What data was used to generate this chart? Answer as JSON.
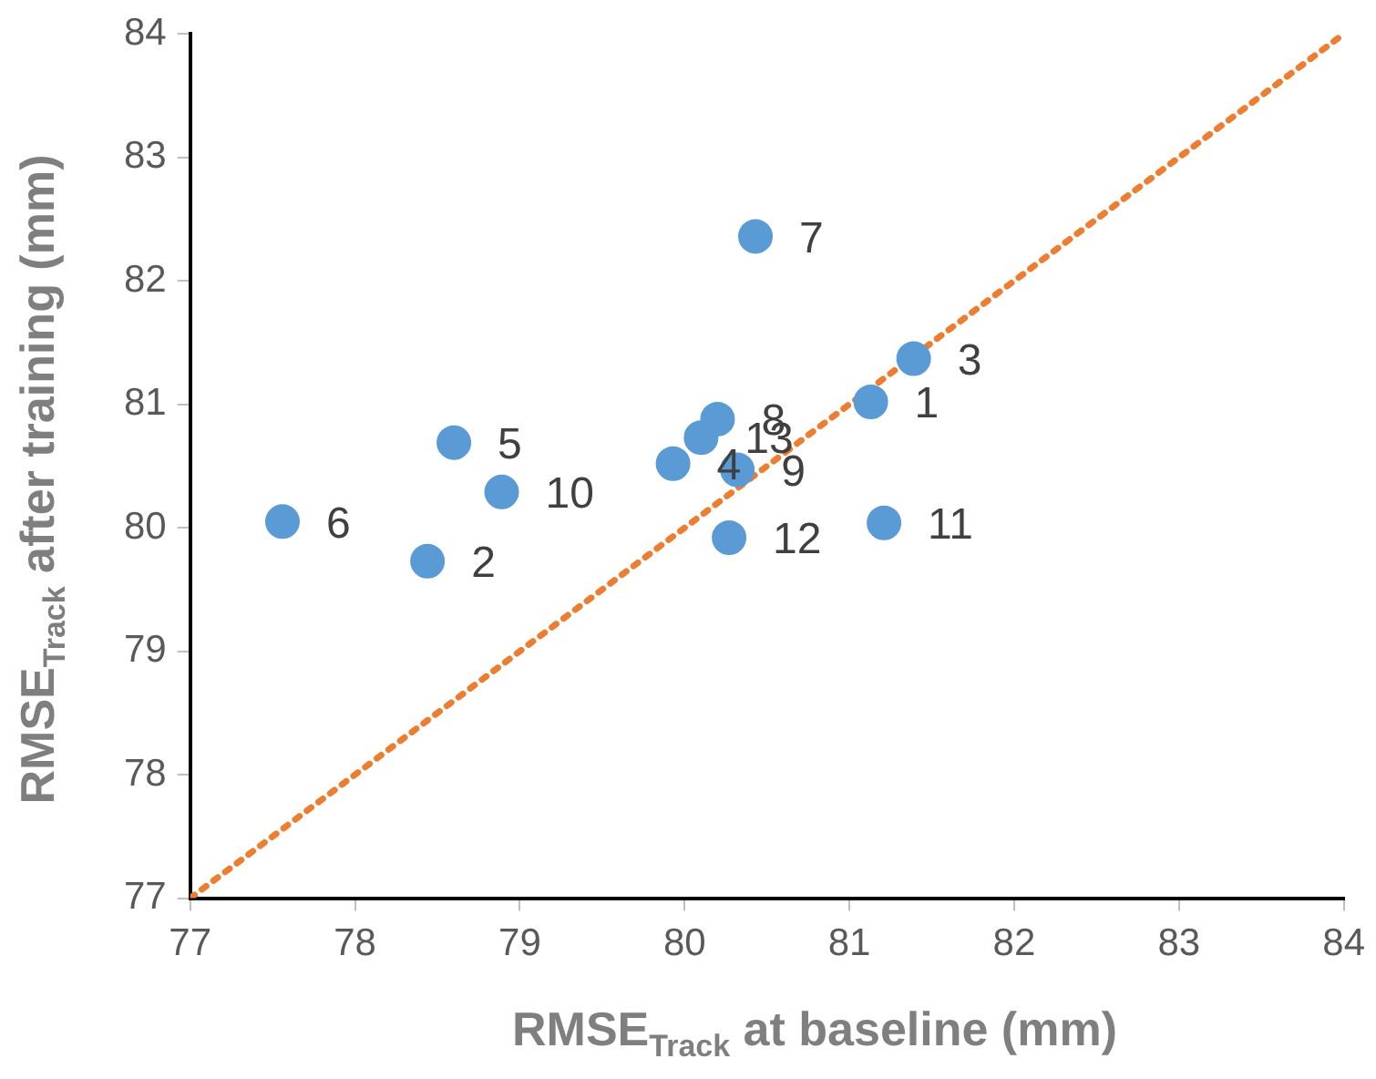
{
  "chart_data": {
    "type": "scatter",
    "xlabel": "RMSE$_{Track}$ at baseline (mm)",
    "ylabel": "RMSE$_{Track}$ after training (mm)",
    "xlim": [
      77,
      84
    ],
    "ylim": [
      77,
      84
    ],
    "xticks": [
      77,
      78,
      79,
      80,
      81,
      82,
      83,
      84
    ],
    "yticks": [
      77,
      78,
      79,
      80,
      81,
      82,
      83,
      84
    ],
    "grid": false,
    "series": [
      {
        "color": "#5b9bd5",
        "marker": "circle",
        "x": [
          81.13,
          78.44,
          81.39,
          79.93,
          78.6,
          77.56,
          80.43,
          80.2,
          80.32,
          78.89,
          81.21,
          80.27,
          80.1
        ],
        "values": [
          81.02,
          79.73,
          81.37,
          80.52,
          80.69,
          80.05,
          82.36,
          80.88,
          80.47,
          80.29,
          80.04,
          79.92,
          80.73
        ]
      },
      {
        "type": "line",
        "color": "#ed7d31",
        "line_style": "dotted",
        "x": [
          77,
          84
        ],
        "values": [
          77,
          84
        ]
      }
    ],
    "annotations": [
      {
        "text": "1",
        "x": 81.13,
        "y": 81.02
      },
      {
        "text": "2",
        "x": 78.44,
        "y": 79.73
      },
      {
        "text": "3",
        "x": 81.39,
        "y": 81.37
      },
      {
        "text": "4",
        "x": 79.93,
        "y": 80.52
      },
      {
        "text": "5",
        "x": 78.6,
        "y": 80.69
      },
      {
        "text": "6",
        "x": 77.56,
        "y": 80.05
      },
      {
        "text": "7",
        "x": 80.43,
        "y": 82.36
      },
      {
        "text": "8",
        "x": 80.2,
        "y": 80.88
      },
      {
        "text": "9",
        "x": 80.32,
        "y": 80.47
      },
      {
        "text": "10",
        "x": 78.89,
        "y": 80.29
      },
      {
        "text": "11",
        "x": 81.21,
        "y": 80.04
      },
      {
        "text": "12",
        "x": 80.27,
        "y": 79.92
      },
      {
        "text": "13",
        "x": 80.1,
        "y": 80.73
      }
    ]
  }
}
